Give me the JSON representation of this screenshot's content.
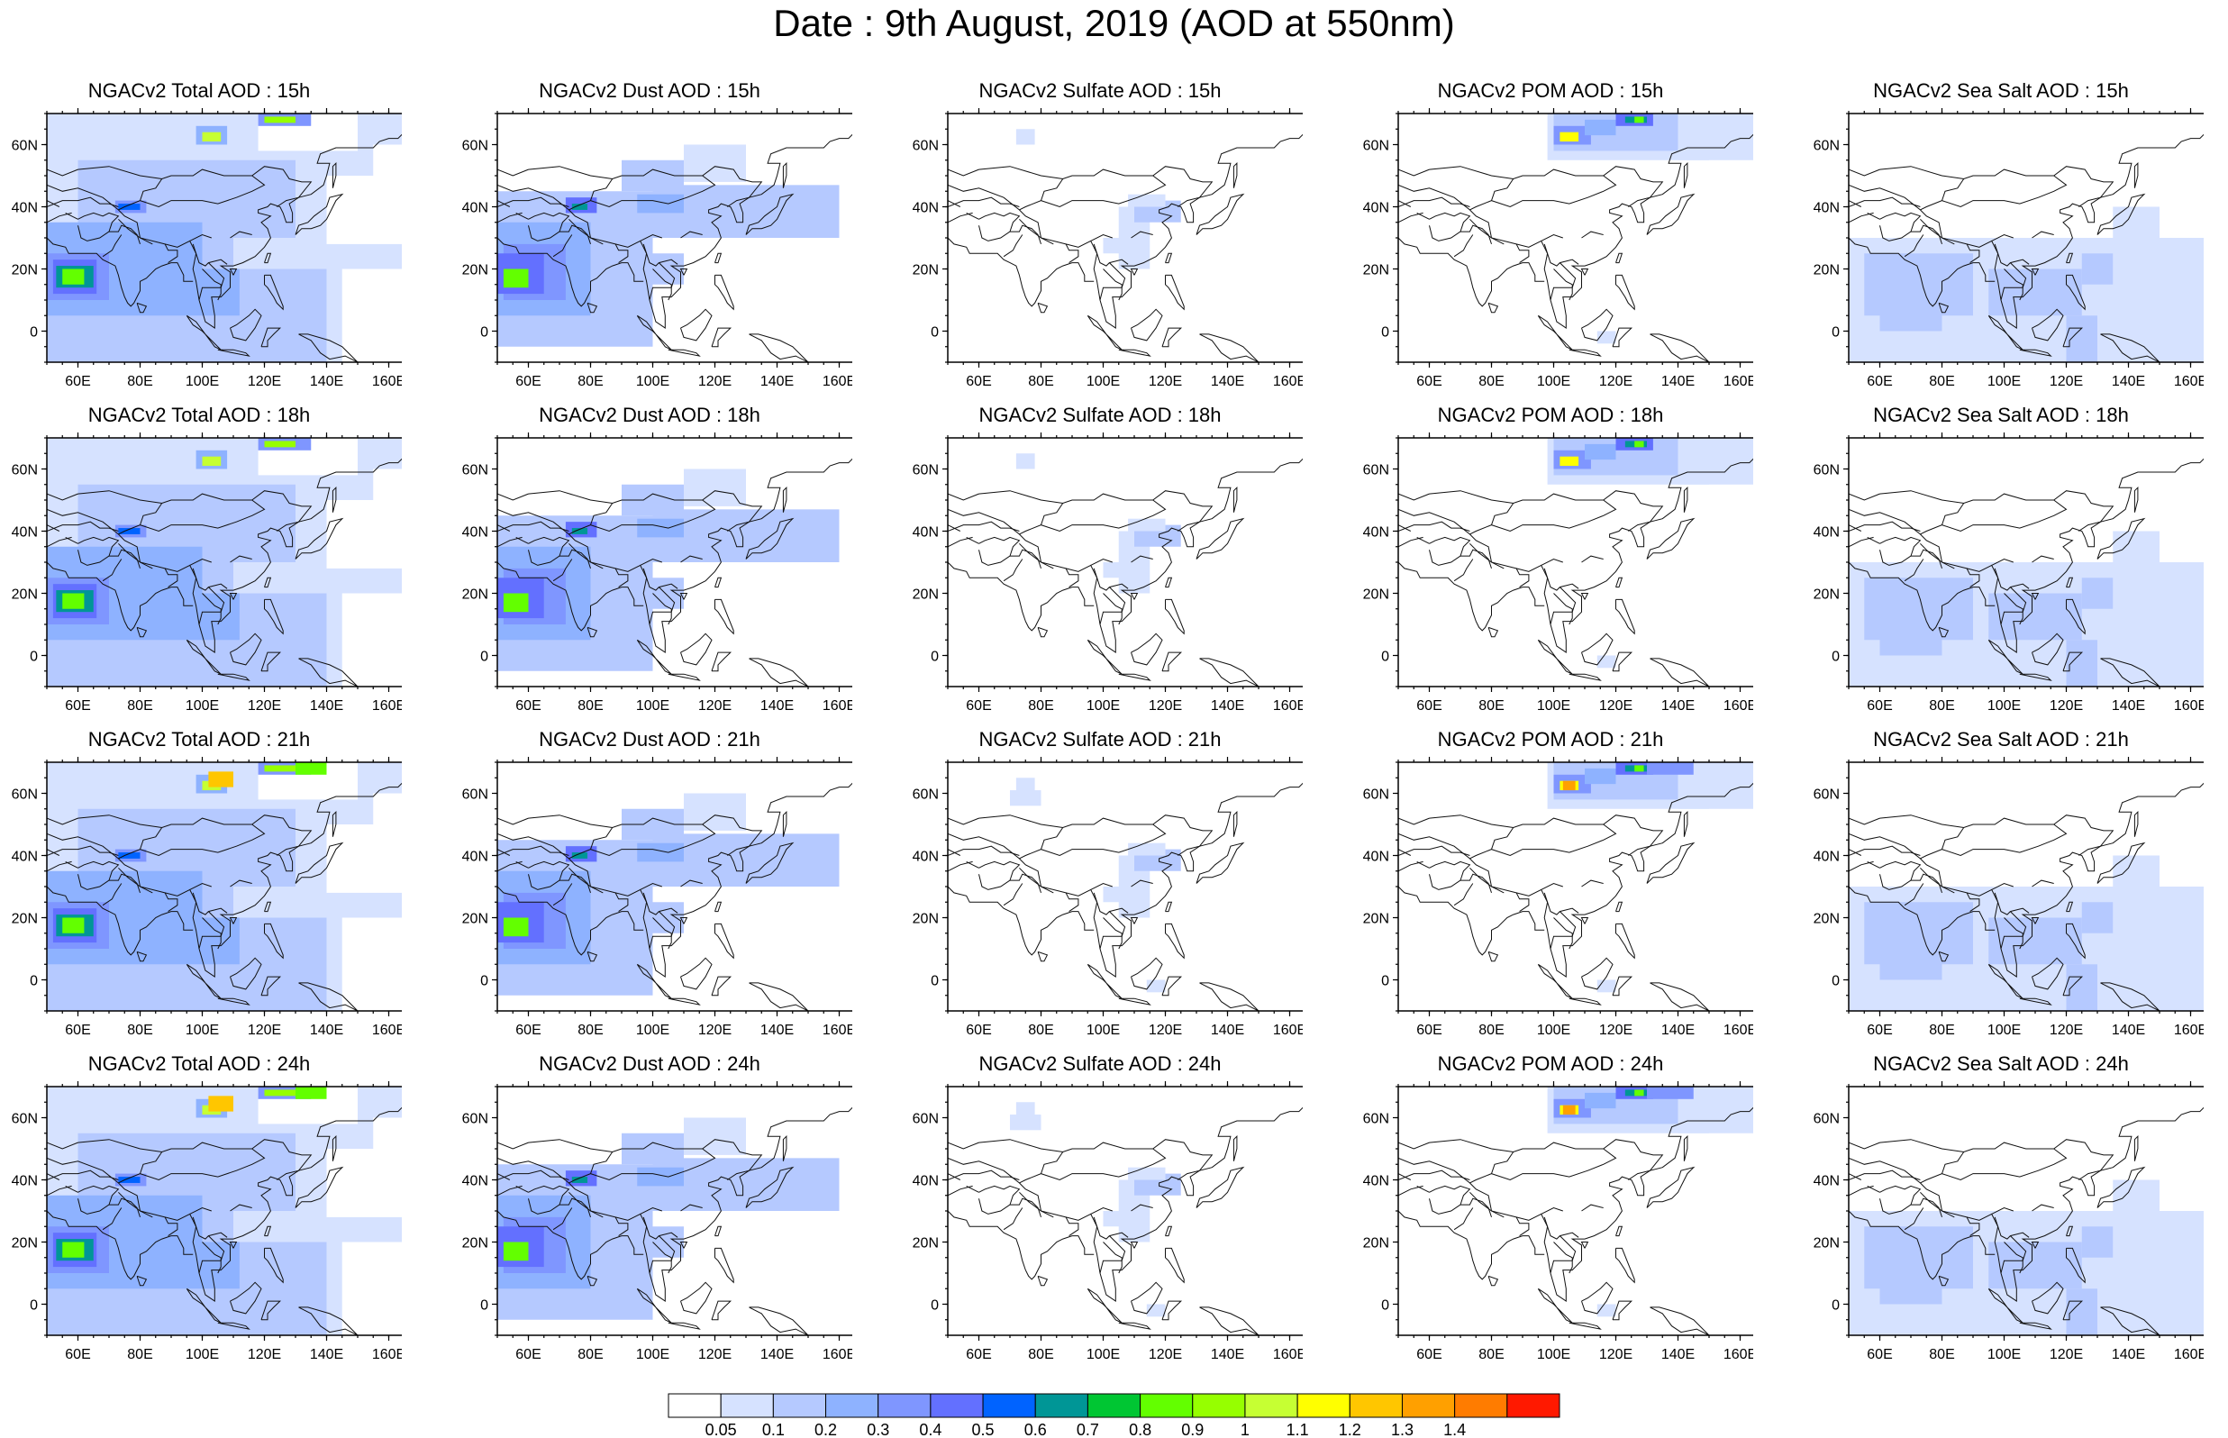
{
  "title": "Date : 9th August, 2019 (AOD at 550nm)",
  "map": {
    "lat_ticks": [
      "60N",
      "40N",
      "20N",
      "0"
    ],
    "lon_ticks": [
      "60E",
      "80E",
      "100E",
      "120E",
      "140E",
      "160E"
    ]
  },
  "panels": [
    [
      "NGACv2 Total AOD : 15h",
      "NGACv2 Dust AOD : 15h",
      "NGACv2 Sulfate AOD : 15h",
      "NGACv2 POM AOD : 15h",
      "NGACv2 Sea Salt AOD : 15h"
    ],
    [
      "NGACv2 Total AOD : 18h",
      "NGACv2 Dust AOD : 18h",
      "NGACv2 Sulfate AOD : 18h",
      "NGACv2 POM AOD : 18h",
      "NGACv2 Sea Salt AOD : 18h"
    ],
    [
      "NGACv2 Total AOD : 21h",
      "NGACv2 Dust AOD : 21h",
      "NGACv2 Sulfate AOD : 21h",
      "NGACv2 POM AOD : 21h",
      "NGACv2 Sea Salt AOD : 21h"
    ],
    [
      "NGACv2 Total AOD : 24h",
      "NGACv2 Dust AOD : 24h",
      "NGACv2 Sulfate AOD : 24h",
      "NGACv2 POM AOD : 24h",
      "NGACv2 Sea Salt  AOD : 24h"
    ]
  ],
  "colorbar": {
    "labels": [
      "0.05",
      "0.1",
      "0.2",
      "0.3",
      "0.4",
      "0.5",
      "0.6",
      "0.7",
      "0.8",
      "0.9",
      "1",
      "1.1",
      "1.2",
      "1.3",
      "1.4"
    ],
    "colors": [
      "#ffffff",
      "#d6e2ff",
      "#b5c9ff",
      "#8eb2ff",
      "#7f96ff",
      "#6370ff",
      "#0063ff",
      "#009696",
      "#00c633",
      "#63ff00",
      "#96ff00",
      "#c6ff33",
      "#ffff00",
      "#ffc600",
      "#ffa000",
      "#ff7c00",
      "#ff1900"
    ]
  }
}
